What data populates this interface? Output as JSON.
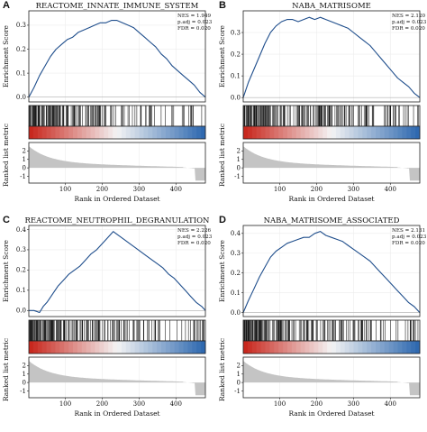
{
  "colors": {
    "curve": "#1f4e8c",
    "metric_fill": "#c4c4c4",
    "hits": "#111111",
    "frame": "#222222",
    "grid": "#ececec",
    "zero_line": "#b0b0b0",
    "heat_high": "#c8281e",
    "heat_mid": "#f4f4f4",
    "heat_low": "#2f69b0"
  },
  "chart_data": [
    {
      "panel_label": "A",
      "title": "REACTOME_INNATE_IMMUNE_SYSTEM",
      "type": "line",
      "stats": [
        "NES = 1.949",
        "p.adj = 0.023",
        "FDR = 0.020"
      ],
      "ylabel_es": "Enrichment Score",
      "ylabel_metric": "Ranked list metric",
      "xlabel": "Rank in Ordered Dataset",
      "xlim": [
        1,
        480
      ],
      "xticks": [
        100,
        200,
        300,
        400
      ],
      "es_ylim": [
        -0.02,
        0.36
      ],
      "es_yticks": [
        0.0,
        0.1,
        0.2,
        0.3
      ],
      "running_es": {
        "x": [
          1,
          15,
          30,
          45,
          60,
          75,
          90,
          105,
          120,
          135,
          150,
          165,
          180,
          195,
          210,
          225,
          240,
          255,
          270,
          285,
          300,
          315,
          330,
          345,
          360,
          375,
          390,
          405,
          420,
          435,
          450,
          465,
          480
        ],
        "y": [
          0.0,
          0.04,
          0.09,
          0.13,
          0.17,
          0.2,
          0.22,
          0.24,
          0.25,
          0.27,
          0.28,
          0.29,
          0.3,
          0.31,
          0.31,
          0.32,
          0.32,
          0.31,
          0.3,
          0.29,
          0.27,
          0.25,
          0.23,
          0.21,
          0.18,
          0.16,
          0.13,
          0.11,
          0.09,
          0.07,
          0.05,
          0.02,
          0.0
        ]
      },
      "metric_ylim": [
        -1.8,
        3.0
      ],
      "metric_yticks": [
        -1,
        0,
        1,
        2
      ],
      "seed": 11
    },
    {
      "panel_label": "B",
      "title": "NABA_MATRISOME",
      "type": "line",
      "stats": [
        "NES = 2.120",
        "p.adj = 0.023",
        "FDR = 0.020"
      ],
      "ylabel_es": "Enrichment Score",
      "ylabel_metric": "Ranked list metric",
      "xlabel": "Rank in Ordered Dataset",
      "xlim": [
        1,
        480
      ],
      "xticks": [
        100,
        200,
        300,
        400
      ],
      "es_ylim": [
        -0.02,
        0.4
      ],
      "es_yticks": [
        0.0,
        0.1,
        0.2,
        0.3
      ],
      "running_es": {
        "x": [
          1,
          15,
          30,
          45,
          60,
          75,
          90,
          105,
          120,
          135,
          150,
          165,
          180,
          195,
          210,
          225,
          240,
          255,
          270,
          285,
          300,
          315,
          330,
          345,
          360,
          375,
          390,
          405,
          420,
          435,
          450,
          465,
          480
        ],
        "y": [
          0.0,
          0.07,
          0.13,
          0.19,
          0.25,
          0.3,
          0.33,
          0.35,
          0.36,
          0.36,
          0.35,
          0.36,
          0.37,
          0.36,
          0.37,
          0.36,
          0.35,
          0.34,
          0.33,
          0.32,
          0.3,
          0.28,
          0.26,
          0.24,
          0.21,
          0.18,
          0.15,
          0.12,
          0.09,
          0.07,
          0.05,
          0.02,
          0.0
        ]
      },
      "metric_ylim": [
        -1.8,
        3.0
      ],
      "metric_yticks": [
        -1,
        0,
        1,
        2
      ],
      "seed": 23
    },
    {
      "panel_label": "C",
      "title": "REACTOME_NEUTROPHIL_DEGRANULATION",
      "type": "line",
      "stats": [
        "NES = 2.226",
        "p.adj = 0.023",
        "FDR = 0.020"
      ],
      "ylabel_es": "Enrichment Score",
      "ylabel_metric": "Ranked list metric",
      "xlabel": "Rank in Ordered Dataset",
      "xlim": [
        1,
        480
      ],
      "xticks": [
        100,
        200,
        300,
        400
      ],
      "es_ylim": [
        -0.03,
        0.42
      ],
      "es_yticks": [
        0.0,
        0.1,
        0.2,
        0.3,
        0.4
      ],
      "running_es": {
        "x": [
          1,
          15,
          30,
          40,
          50,
          65,
          80,
          95,
          110,
          125,
          140,
          155,
          170,
          185,
          200,
          215,
          230,
          245,
          260,
          275,
          290,
          305,
          320,
          335,
          350,
          365,
          380,
          395,
          410,
          425,
          440,
          455,
          470,
          480
        ],
        "y": [
          0.0,
          0.0,
          -0.01,
          0.02,
          0.04,
          0.08,
          0.12,
          0.15,
          0.18,
          0.2,
          0.22,
          0.25,
          0.28,
          0.3,
          0.33,
          0.36,
          0.39,
          0.37,
          0.35,
          0.33,
          0.31,
          0.29,
          0.27,
          0.25,
          0.23,
          0.21,
          0.18,
          0.16,
          0.13,
          0.1,
          0.07,
          0.04,
          0.02,
          0.0
        ]
      },
      "metric_ylim": [
        -1.8,
        3.0
      ],
      "metric_yticks": [
        -1,
        0,
        1,
        2
      ],
      "seed": 37
    },
    {
      "panel_label": "D",
      "title": "NABA_MATRISOME_ASSOCIATED",
      "type": "line",
      "stats": [
        "NES = 2.131",
        "p.adj = 0.023",
        "FDR = 0.020"
      ],
      "ylabel_es": "Enrichment Score",
      "ylabel_metric": "Ranked list metric",
      "xlabel": "Rank in Ordered Dataset",
      "xlim": [
        1,
        480
      ],
      "xticks": [
        100,
        200,
        300,
        400
      ],
      "es_ylim": [
        -0.02,
        0.44
      ],
      "es_yticks": [
        0.0,
        0.1,
        0.2,
        0.3,
        0.4
      ],
      "running_es": {
        "x": [
          1,
          15,
          30,
          45,
          60,
          75,
          90,
          105,
          120,
          135,
          150,
          165,
          180,
          195,
          210,
          225,
          240,
          255,
          270,
          285,
          300,
          315,
          330,
          345,
          360,
          375,
          390,
          405,
          420,
          435,
          450,
          465,
          480
        ],
        "y": [
          0.0,
          0.06,
          0.12,
          0.18,
          0.23,
          0.28,
          0.31,
          0.33,
          0.35,
          0.36,
          0.37,
          0.38,
          0.38,
          0.4,
          0.41,
          0.39,
          0.38,
          0.37,
          0.36,
          0.34,
          0.32,
          0.3,
          0.28,
          0.26,
          0.23,
          0.2,
          0.17,
          0.14,
          0.11,
          0.08,
          0.05,
          0.03,
          0.0
        ]
      },
      "metric_ylim": [
        -1.8,
        3.0
      ],
      "metric_yticks": [
        -1,
        0,
        1,
        2
      ],
      "seed": 53
    }
  ]
}
